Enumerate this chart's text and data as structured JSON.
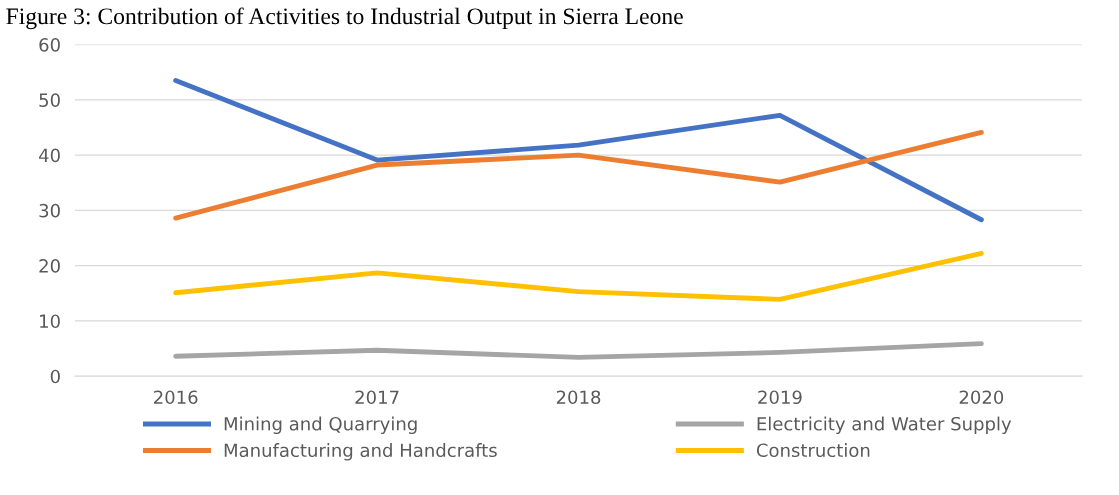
{
  "chart_data": {
    "type": "line",
    "title": "Figure 3: Contribution of Activities to Industrial Output in Sierra Leone",
    "categories": [
      "2016",
      "2017",
      "2018",
      "2019",
      "2020"
    ],
    "series": [
      {
        "name": "Mining and Quarrying",
        "color": "#4472c4",
        "values": [
          53.5,
          39.1,
          41.8,
          47.2,
          28.3
        ]
      },
      {
        "name": "Manufacturing and Handcrafts",
        "color": "#ed7d31",
        "values": [
          28.6,
          38.2,
          40.0,
          35.1,
          44.1
        ]
      },
      {
        "name": "Electricity and Water Supply",
        "color": "#a5a5a5",
        "values": [
          3.6,
          4.7,
          3.4,
          4.3,
          5.9
        ]
      },
      {
        "name": "Construction",
        "color": "#ffc000",
        "values": [
          15.1,
          18.7,
          15.3,
          13.9,
          22.2
        ]
      }
    ],
    "ylim": [
      0,
      60
    ],
    "yticks": [
      0,
      10,
      20,
      30,
      40,
      50,
      60
    ],
    "grid": "y",
    "legend": "bottom",
    "marker": "none",
    "line_style": "solid"
  }
}
